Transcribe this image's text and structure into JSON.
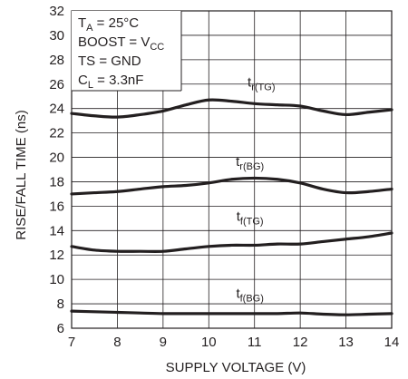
{
  "chart_data": {
    "type": "line",
    "title": "",
    "xlabel": "SUPPLY VOLTAGE (V)",
    "ylabel": "RISE/FALL TIME (ns)",
    "xlim": [
      7,
      14
    ],
    "ylim": [
      6,
      32
    ],
    "xticks": [
      7,
      8,
      9,
      10,
      11,
      12,
      13,
      14
    ],
    "yticks": [
      6,
      8,
      10,
      12,
      14,
      16,
      18,
      20,
      22,
      24,
      26,
      28,
      30,
      32
    ],
    "grid": true,
    "conditions": [
      {
        "main": "T",
        "sub": "A",
        "rest": " = 25°C"
      },
      {
        "main": "BOOST = V",
        "sub": "CC",
        "rest": ""
      },
      {
        "main": "TS = GND",
        "sub": "",
        "rest": ""
      },
      {
        "main": "C",
        "sub": "L",
        "rest": " = 3.3nF"
      }
    ],
    "series": [
      {
        "name": "tr(TG)",
        "label_main": "t",
        "label_sub": "r(TG)",
        "x": [
          7,
          7.5,
          8,
          8.5,
          9,
          9.5,
          10,
          10.5,
          11,
          11.5,
          12,
          12.5,
          13,
          13.5,
          14
        ],
        "y": [
          23.6,
          23.4,
          23.3,
          23.5,
          23.8,
          24.3,
          24.7,
          24.6,
          24.4,
          24.3,
          24.2,
          23.8,
          23.5,
          23.7,
          23.9
        ]
      },
      {
        "name": "tr(BG)",
        "label_main": "t",
        "label_sub": "r(BG)",
        "x": [
          7,
          7.5,
          8,
          8.5,
          9,
          9.5,
          10,
          10.5,
          11,
          11.5,
          12,
          12.5,
          13,
          13.5,
          14
        ],
        "y": [
          17.0,
          17.1,
          17.2,
          17.4,
          17.6,
          17.7,
          17.9,
          18.2,
          18.3,
          18.2,
          17.9,
          17.4,
          17.1,
          17.2,
          17.4
        ]
      },
      {
        "name": "tf(TG)",
        "label_main": "t",
        "label_sub": "f(TG)",
        "x": [
          7,
          7.5,
          8,
          8.5,
          9,
          9.5,
          10,
          10.5,
          11,
          11.5,
          12,
          12.5,
          13,
          13.5,
          14
        ],
        "y": [
          12.7,
          12.4,
          12.3,
          12.3,
          12.3,
          12.5,
          12.7,
          12.8,
          12.8,
          12.9,
          12.9,
          13.1,
          13.3,
          13.5,
          13.8
        ]
      },
      {
        "name": "tf(BG)",
        "label_main": "t",
        "label_sub": "f(BG)",
        "x": [
          7,
          7.5,
          8,
          8.5,
          9,
          9.5,
          10,
          10.5,
          11,
          11.5,
          12,
          12.5,
          13,
          13.5,
          14
        ],
        "y": [
          7.4,
          7.35,
          7.3,
          7.25,
          7.2,
          7.2,
          7.2,
          7.2,
          7.2,
          7.2,
          7.25,
          7.15,
          7.1,
          7.15,
          7.2
        ]
      }
    ],
    "series_label_positions": [
      {
        "x": 11.15,
        "y": 25.8
      },
      {
        "x": 10.9,
        "y": 19.3
      },
      {
        "x": 10.9,
        "y": 14.8
      },
      {
        "x": 10.9,
        "y": 8.5
      }
    ]
  }
}
